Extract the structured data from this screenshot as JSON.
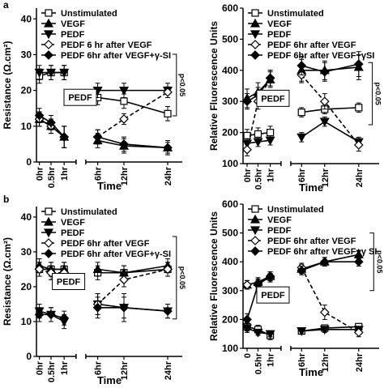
{
  "chart_data": [
    {
      "type": "line",
      "panel_label": "a",
      "y_label": "Resistance (Ω.cm²)",
      "x_label": "Time",
      "categories": [
        "0hr",
        "0.5hr",
        "1hr",
        "6hr",
        "12hr",
        "24hr"
      ],
      "ylim": [
        0,
        43
      ],
      "yticks": [
        0,
        10,
        20,
        30,
        40
      ],
      "series": [
        {
          "name": "Unstimulated",
          "color": "#000000",
          "marker": "square-open",
          "dashed": false,
          "values": [
            24,
            25,
            25,
            18,
            17,
            13.5
          ],
          "errors": [
            2,
            2,
            2,
            2,
            2,
            2
          ]
        },
        {
          "name": "VEGF",
          "color": "#000000",
          "marker": "triangle-up",
          "dashed": false,
          "values": [
            12,
            10,
            7,
            6,
            4.5,
            4
          ],
          "errors": [
            2,
            2,
            3,
            2,
            2,
            2
          ]
        },
        {
          "name": "PEDF",
          "color": "#000000",
          "marker": "triangle-down",
          "dashed": false,
          "values": [
            25,
            25,
            25,
            20,
            20,
            20
          ],
          "errors": [
            2,
            2,
            2,
            2,
            2,
            2
          ]
        },
        {
          "name": "PEDF 6 hr after VEGF",
          "color": "#000000",
          "marker": "diamond-open",
          "dashed": true,
          "values": [
            12,
            10,
            7,
            7,
            12,
            19.5
          ],
          "errors": [
            2,
            2,
            3,
            2,
            1.5,
            1.5
          ]
        },
        {
          "name": "PEDF 6hr after VEGF+γ-SI",
          "color": "#000000",
          "marker": "diamond",
          "dashed": false,
          "values": [
            13,
            11,
            7,
            7,
            5,
            4
          ],
          "errors": [
            2,
            2,
            3,
            2,
            2,
            1.5
          ]
        }
      ],
      "annotations": [
        "PEDF",
        "p<0.05"
      ]
    },
    {
      "type": "line",
      "y_label": "Relative Fluorescence Units",
      "x_label": "Time",
      "categories": [
        "0hr",
        "0.5hr",
        "1hr",
        "6hr",
        "12hr",
        "24hr"
      ],
      "ylim": [
        100,
        600
      ],
      "yticks": [
        100,
        200,
        300,
        400,
        500,
        600
      ],
      "series": [
        {
          "name": "Unstimulated",
          "color": "#000000",
          "marker": "square-open",
          "dashed": false,
          "values": [
            190,
            195,
            200,
            265,
            275,
            280
          ],
          "errors": [
            20,
            20,
            20,
            15,
            15,
            15
          ]
        },
        {
          "name": "VEGF",
          "color": "#000000",
          "marker": "triangle-up",
          "dashed": false,
          "values": [
            310,
            330,
            370,
            400,
            400,
            410
          ],
          "errors": [
            30,
            30,
            25,
            35,
            30,
            40
          ]
        },
        {
          "name": "PEDF",
          "color": "#000000",
          "marker": "triangle-down",
          "dashed": false,
          "values": [
            165,
            170,
            175,
            185,
            235,
            170
          ],
          "errors": [
            15,
            15,
            15,
            15,
            15,
            15
          ]
        },
        {
          "name": "PEDF 6hr after VEGF",
          "color": "#000000",
          "marker": "diamond-open",
          "dashed": true,
          "values": [
            145,
            300,
            375,
            385,
            300,
            160
          ],
          "errors": [
            20,
            25,
            25,
            25,
            25,
            20
          ]
        },
        {
          "name": "PEDF 6hr after VEGF+γSI",
          "color": "#000000",
          "marker": "diamond",
          "dashed": false,
          "values": [
            300,
            320,
            375,
            415,
            395,
            420
          ],
          "errors": [
            25,
            25,
            25,
            30,
            30,
            40
          ]
        }
      ],
      "annotations": [
        "PEDF",
        "p<0.05"
      ]
    },
    {
      "type": "line",
      "panel_label": "b",
      "y_label": "Resistance (Ω.cm²)",
      "x_label": "Time",
      "categories": [
        "0hr",
        "0.5hr",
        "1hr",
        "6hr",
        "12hr",
        "24hr"
      ],
      "ylim": [
        0,
        43
      ],
      "yticks": [
        0,
        10,
        20,
        30,
        40
      ],
      "series": [
        {
          "name": "Unstimulated",
          "color": "#000000",
          "marker": "square-open",
          "dashed": false,
          "values": [
            25,
            25,
            25,
            24,
            24,
            25
          ],
          "errors": [
            2,
            2,
            2,
            2,
            2,
            2
          ]
        },
        {
          "name": "VEGF",
          "color": "#000000",
          "marker": "triangle-up",
          "dashed": false,
          "values": [
            26,
            25,
            25,
            25,
            24,
            26
          ],
          "errors": [
            2,
            2,
            2,
            2,
            2,
            2
          ]
        },
        {
          "name": "PEDF",
          "color": "#000000",
          "marker": "triangle-down",
          "dashed": false,
          "values": [
            13,
            12,
            10,
            15,
            14,
            13
          ],
          "errors": [
            2,
            2,
            2,
            3,
            3,
            2
          ]
        },
        {
          "name": "PEDF 6hr after VEGF",
          "color": "#000000",
          "marker": "diamond-open",
          "dashed": true,
          "values": [
            25,
            24,
            24,
            15,
            22,
            25
          ],
          "errors": [
            2,
            2,
            2,
            3,
            2,
            2
          ]
        },
        {
          "name": "PEDF 6hr after VEGF+γ-SI",
          "color": "#000000",
          "marker": "diamond",
          "dashed": false,
          "values": [
            12,
            12,
            11,
            14,
            14,
            13
          ],
          "errors": [
            2,
            2,
            2,
            3,
            4,
            2
          ]
        }
      ],
      "annotations": [
        "PEDF",
        "p<0.05"
      ]
    },
    {
      "type": "line",
      "y_label": "Relative Fluorescence Units",
      "x_label": "Time",
      "categories": [
        "0",
        "0.5hr",
        "1hr",
        "6hr",
        "12hr",
        "24hr"
      ],
      "ylim": [
        100,
        600
      ],
      "yticks": [
        100,
        200,
        300,
        400,
        500,
        600
      ],
      "series": [
        {
          "name": "Unstimulated",
          "color": "#000000",
          "marker": "square-open",
          "dashed": false,
          "values": [
            175,
            165,
            145,
            160,
            170,
            175
          ],
          "errors": [
            15,
            15,
            15,
            10,
            10,
            10
          ]
        },
        {
          "name": "VEGF",
          "color": "#000000",
          "marker": "triangle-up",
          "dashed": false,
          "values": [
            320,
            330,
            350,
            375,
            400,
            425
          ],
          "errors": [
            15,
            15,
            15,
            15,
            15,
            15
          ]
        },
        {
          "name": "PEDF",
          "color": "#000000",
          "marker": "triangle-down",
          "dashed": false,
          "values": [
            170,
            155,
            150,
            160,
            165,
            165
          ],
          "errors": [
            15,
            10,
            10,
            10,
            10,
            10
          ]
        },
        {
          "name": "PEDF 6hr after VEGF",
          "color": "#000000",
          "marker": "diamond-open",
          "dashed": true,
          "values": [
            320,
            325,
            345,
            380,
            225,
            155
          ],
          "errors": [
            15,
            15,
            15,
            15,
            25,
            15
          ]
        },
        {
          "name": "PEDF 6hr after VEGF+γ SI",
          "color": "#000000",
          "marker": "diamond",
          "dashed": false,
          "values": [
            200,
            320,
            350,
            370,
            400,
            400
          ],
          "errors": [
            20,
            15,
            15,
            15,
            15,
            15
          ]
        }
      ],
      "annotations": [
        "PEDF",
        "p<0.05"
      ]
    }
  ]
}
